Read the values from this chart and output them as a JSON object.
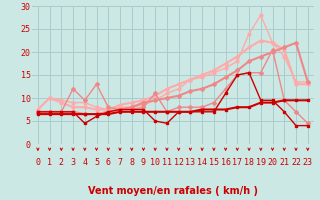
{
  "xlabel": "Vent moyen/en rafales ( km/h )",
  "bg_color": "#cce8e4",
  "grid_color": "#aacccc",
  "xlim": [
    -0.5,
    23.5
  ],
  "ylim": [
    0,
    30
  ],
  "yticks": [
    0,
    5,
    10,
    15,
    20,
    25,
    30
  ],
  "xticks": [
    0,
    1,
    2,
    3,
    4,
    5,
    6,
    7,
    8,
    9,
    10,
    11,
    12,
    13,
    14,
    15,
    16,
    17,
    18,
    19,
    20,
    21,
    22,
    23
  ],
  "lines": [
    {
      "x": [
        0,
        1,
        2,
        3,
        4,
        5,
        6,
        7,
        8,
        9,
        10,
        11,
        12,
        13,
        14,
        15,
        16,
        17,
        18,
        19,
        20,
        21,
        22,
        23
      ],
      "y": [
        7.5,
        10,
        9.5,
        9,
        9,
        8,
        7.5,
        8,
        8,
        8.5,
        9.5,
        11,
        12,
        14,
        14.5,
        15.5,
        16.5,
        18,
        24,
        28,
        22,
        19,
        13.5,
        13.5
      ],
      "color": "#ffaaaa",
      "lw": 1.0,
      "marker": "o",
      "ms": 2.0,
      "zorder": 2
    },
    {
      "x": [
        0,
        1,
        2,
        3,
        4,
        5,
        6,
        7,
        8,
        9,
        10,
        11,
        12,
        13,
        14,
        15,
        16,
        17,
        18,
        19,
        20,
        21,
        22,
        23
      ],
      "y": [
        7.5,
        10,
        9,
        8,
        8,
        7.5,
        7.5,
        8.5,
        9,
        9.5,
        10.5,
        12,
        13,
        14,
        15,
        16,
        17.5,
        19,
        21,
        22.5,
        22,
        20.5,
        13,
        13
      ],
      "color": "#ffaaaa",
      "lw": 1.5,
      "marker": "o",
      "ms": 2.0,
      "zorder": 2
    },
    {
      "x": [
        0,
        1,
        2,
        3,
        4,
        5,
        6,
        7,
        8,
        9,
        10,
        11,
        12,
        13,
        14,
        15,
        16,
        17,
        18,
        19,
        20,
        21,
        22,
        23
      ],
      "y": [
        7,
        7,
        7,
        12,
        9.5,
        13,
        8,
        7.5,
        7.5,
        8,
        11,
        7,
        8,
        8,
        8,
        9,
        12,
        15,
        15.5,
        15.5,
        20.5,
        9.5,
        7,
        4.5
      ],
      "color": "#ee8888",
      "lw": 1.0,
      "marker": "D",
      "ms": 2.0,
      "zorder": 3
    },
    {
      "x": [
        0,
        1,
        2,
        3,
        4,
        5,
        6,
        7,
        8,
        9,
        10,
        11,
        12,
        13,
        14,
        15,
        16,
        17,
        18,
        19,
        20,
        21,
        22,
        23
      ],
      "y": [
        7,
        7,
        7,
        7,
        6.5,
        6.5,
        7,
        7.5,
        8,
        9,
        9.5,
        10,
        10.5,
        11.5,
        12,
        13,
        14.5,
        16,
        18,
        19,
        20,
        21,
        22,
        13.5
      ],
      "color": "#ee8888",
      "lw": 1.5,
      "marker": "D",
      "ms": 2.0,
      "zorder": 3
    },
    {
      "x": [
        0,
        1,
        2,
        3,
        4,
        5,
        6,
        7,
        8,
        9,
        10,
        11,
        12,
        13,
        14,
        15,
        16,
        17,
        18,
        19,
        20,
        21,
        22,
        23
      ],
      "y": [
        7,
        7,
        7,
        7,
        4.5,
        6,
        7,
        7.5,
        7.5,
        7.5,
        5,
        4.5,
        7,
        7,
        7,
        7,
        11,
        15,
        15.5,
        9.5,
        9.5,
        7,
        4,
        4
      ],
      "color": "#cc0000",
      "lw": 1.0,
      "marker": "s",
      "ms": 2.0,
      "zorder": 5
    },
    {
      "x": [
        0,
        1,
        2,
        3,
        4,
        5,
        6,
        7,
        8,
        9,
        10,
        11,
        12,
        13,
        14,
        15,
        16,
        17,
        18,
        19,
        20,
        21,
        22,
        23
      ],
      "y": [
        6.5,
        6.5,
        6.5,
        6.5,
        6.5,
        6.5,
        6.5,
        7,
        7,
        7,
        7,
        7,
        7,
        7,
        7.5,
        7.5,
        7.5,
        8,
        8,
        9,
        9,
        9.5,
        9.5,
        9.5
      ],
      "color": "#cc0000",
      "lw": 1.5,
      "marker": "s",
      "ms": 2.0,
      "zorder": 4
    }
  ],
  "arrow_color": "#cc0000",
  "xlabel_fontsize": 7,
  "tick_fontsize": 6
}
